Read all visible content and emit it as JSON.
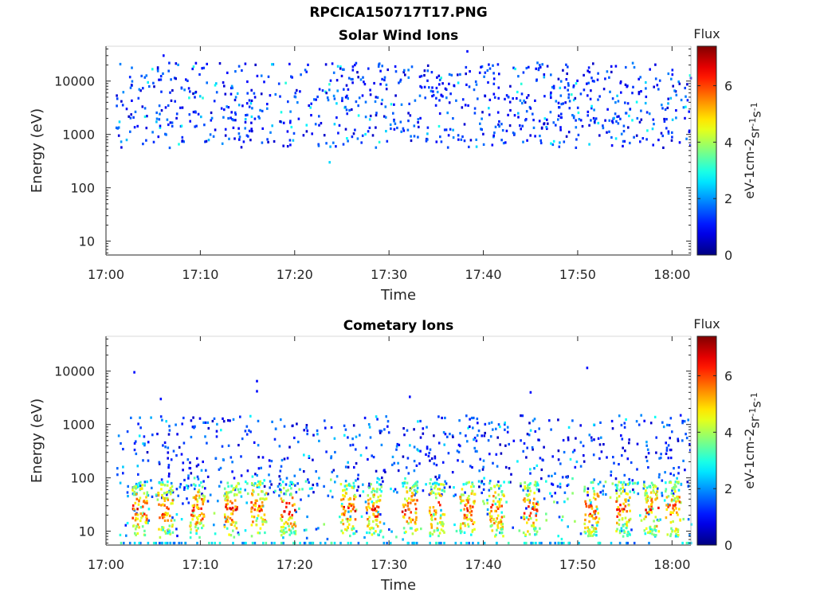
{
  "figure": {
    "title": "RPCICA150717T17.PNG"
  },
  "chart_data": [
    {
      "type": "heatmap",
      "title": "Solar Wind Ions",
      "xlabel": "Time",
      "ylabel": "Energy (eV)",
      "x_ticks": [
        "17:00",
        "17:10",
        "17:20",
        "17:30",
        "17:40",
        "17:50",
        "18:00"
      ],
      "x_range_min": [
        0,
        62
      ],
      "y_ticks": [
        10,
        100,
        1000,
        10000
      ],
      "y_tick_labels": [
        "10",
        "100",
        "1000",
        "10000"
      ],
      "y_range_eV": [
        5.5,
        45000
      ],
      "y_scale": "log",
      "colorbar": {
        "title": "Flux",
        "label": "eV-1 cm-2 sr-1 s-1",
        "range": [
          0,
          7.4
        ],
        "ticks": [
          "0",
          "2",
          "4",
          "6"
        ]
      },
      "colormap": "jet",
      "observed_energy_range_eV": [
        500,
        25000
      ],
      "dominant_flux_level": 1.5
    },
    {
      "type": "heatmap",
      "title": "Cometary Ions",
      "xlabel": "Time",
      "ylabel": "Energy (eV)",
      "x_ticks": [
        "17:00",
        "17:10",
        "17:20",
        "17:30",
        "17:40",
        "17:50",
        "18:00"
      ],
      "x_range_min": [
        0,
        62
      ],
      "y_ticks": [
        10,
        100,
        1000,
        10000
      ],
      "y_tick_labels": [
        "10",
        "100",
        "1000",
        "10000"
      ],
      "y_range_eV": [
        5.5,
        45000
      ],
      "y_scale": "log",
      "colorbar": {
        "title": "Flux",
        "label": "eV-1 cm-2 sr-1 s-1",
        "range": [
          0,
          7.4
        ],
        "ticks": [
          "0",
          "2",
          "4",
          "6"
        ]
      },
      "colormap": "jet",
      "observed_energy_range_eV": [
        6,
        1500
      ],
      "burst_times_min": [
        3.5,
        6.2,
        9.6,
        13.2,
        16.1,
        19.2,
        25.6,
        28.3,
        32.1,
        35.0,
        38.2,
        41.3,
        44.9,
        51.4,
        54.7,
        57.7,
        60.0
      ],
      "burst_peak_energy_eV": 25,
      "burst_peak_flux": 7.0
    }
  ]
}
